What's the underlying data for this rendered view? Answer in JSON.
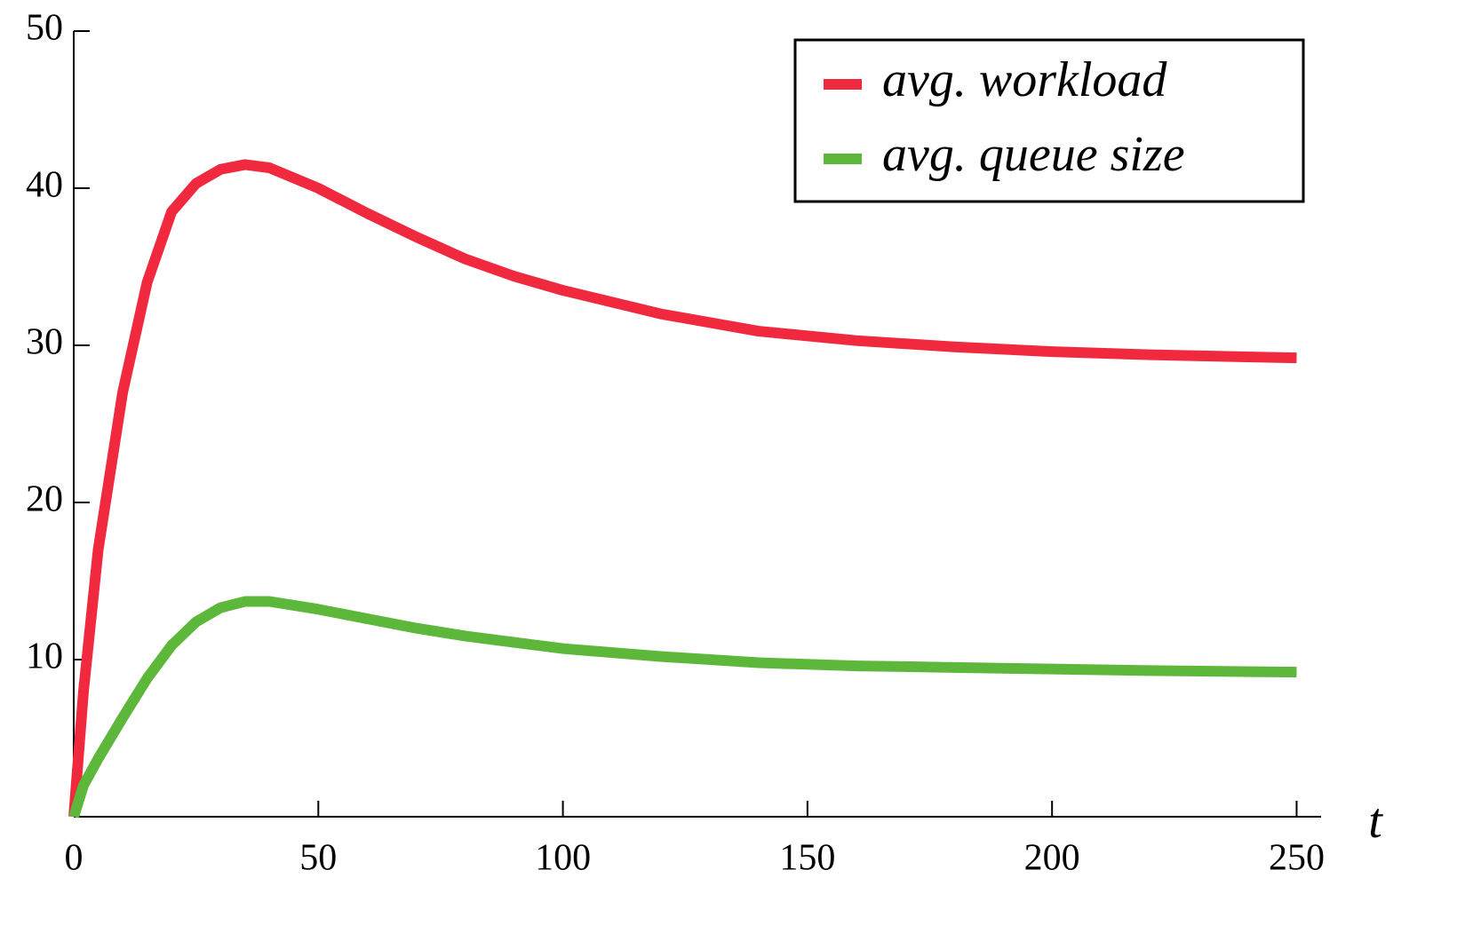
{
  "chart_data": {
    "type": "line",
    "x_label": "t",
    "x": [
      0,
      2,
      5,
      10,
      15,
      20,
      25,
      30,
      35,
      40,
      50,
      60,
      70,
      80,
      90,
      100,
      120,
      140,
      160,
      180,
      200,
      220,
      250
    ],
    "series": [
      {
        "name": "avg. workload",
        "color": "#f0293e",
        "values": [
          0,
          8,
          17,
          27,
          34,
          38.5,
          40.3,
          41.2,
          41.5,
          41.3,
          40,
          38.4,
          36.9,
          35.5,
          34.4,
          33.5,
          32.0,
          30.9,
          30.3,
          29.9,
          29.6,
          29.4,
          29.2
        ]
      },
      {
        "name": "avg. queue size",
        "color": "#5cb73a",
        "values": [
          0,
          2,
          3.7,
          6.3,
          8.8,
          10.9,
          12.4,
          13.3,
          13.7,
          13.7,
          13.2,
          12.6,
          12.0,
          11.5,
          11.1,
          10.7,
          10.2,
          9.8,
          9.6,
          9.5,
          9.4,
          9.3,
          9.2
        ]
      }
    ],
    "xlim": [
      0,
      255
    ],
    "xticks": [
      0,
      50,
      100,
      150,
      200,
      250
    ],
    "ylim": [
      0,
      50
    ],
    "yticks": [
      10,
      20,
      30,
      40,
      50
    ],
    "legend": "upper right"
  }
}
